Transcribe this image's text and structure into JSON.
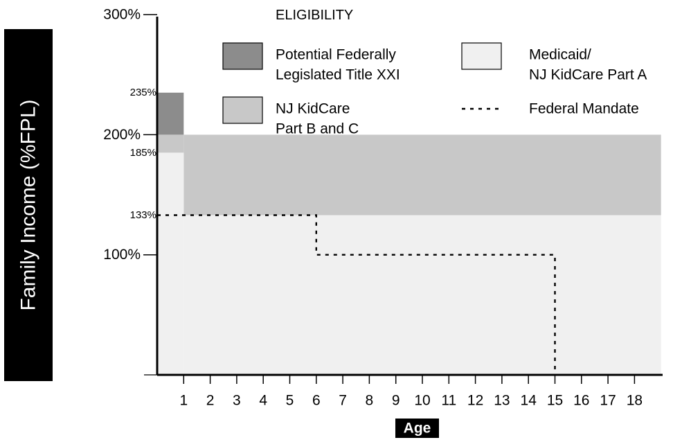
{
  "chart_data": {
    "type": "area",
    "title": "ELIGIBILITY",
    "xlabel": "Age",
    "ylabel": "Family Income (%FPL)",
    "xlim": [
      0,
      19
    ],
    "ylim": [
      0,
      300
    ],
    "x_ticks": [
      "1",
      "2",
      "3",
      "4",
      "5",
      "6",
      "7",
      "8",
      "9",
      "10",
      "11",
      "12",
      "13",
      "14",
      "15",
      "16",
      "17",
      "18"
    ],
    "y_major_ticks": [
      {
        "value": 100,
        "label": "100%"
      },
      {
        "value": 200,
        "label": "200%"
      },
      {
        "value": 300,
        "label": "300%"
      }
    ],
    "y_annotations": [
      {
        "value": 235,
        "label": "235%"
      },
      {
        "value": 185,
        "label": "185%"
      },
      {
        "value": 133,
        "label": "133%"
      }
    ],
    "grid": false,
    "legend_placement": "top-right",
    "colors": {
      "title_xxi": "#8c8c8c",
      "kidcare_bc": "#c8c8c8",
      "medicaid_a": "#f0f0f0",
      "mandate": "#000000"
    },
    "regions": [
      {
        "series": "Potential Federally Legislated Title XXI",
        "color_key": "title_xxi",
        "x0": 0,
        "x1": 1,
        "y0": 200,
        "y1": 235
      },
      {
        "series": "NJ KidCare Part B and C",
        "color_key": "kidcare_bc",
        "x0": 0,
        "x1": 1,
        "y0": 185,
        "y1": 200
      },
      {
        "series": "NJ KidCare Part B and C",
        "color_key": "kidcare_bc",
        "x0": 1,
        "x1": 19,
        "y0": 133,
        "y1": 200
      },
      {
        "series": "Medicaid/ NJ KidCare Part A",
        "color_key": "medicaid_a",
        "x0": 0,
        "x1": 1,
        "y0": 0,
        "y1": 185
      },
      {
        "series": "Medicaid/ NJ KidCare Part A",
        "color_key": "medicaid_a",
        "x0": 1,
        "x1": 19,
        "y0": 0,
        "y1": 133
      }
    ],
    "federal_mandate": {
      "name": "Federal Mandate",
      "points": [
        [
          0,
          133
        ],
        [
          6,
          133
        ],
        [
          6,
          100
        ],
        [
          15,
          100
        ],
        [
          15,
          0
        ]
      ]
    },
    "legend": [
      {
        "label_lines": [
          "Potential Federally",
          "Legislated Title XXI"
        ],
        "color_key": "title_xxi",
        "type": "box"
      },
      {
        "label_lines": [
          "Medicaid/",
          "NJ KidCare Part A"
        ],
        "color_key": "medicaid_a",
        "type": "box"
      },
      {
        "label_lines": [
          "NJ KidCare",
          "Part B and C"
        ],
        "color_key": "kidcare_bc",
        "type": "box"
      },
      {
        "label_lines": [
          "Federal Mandate"
        ],
        "color_key": "mandate",
        "type": "dashed"
      }
    ]
  }
}
